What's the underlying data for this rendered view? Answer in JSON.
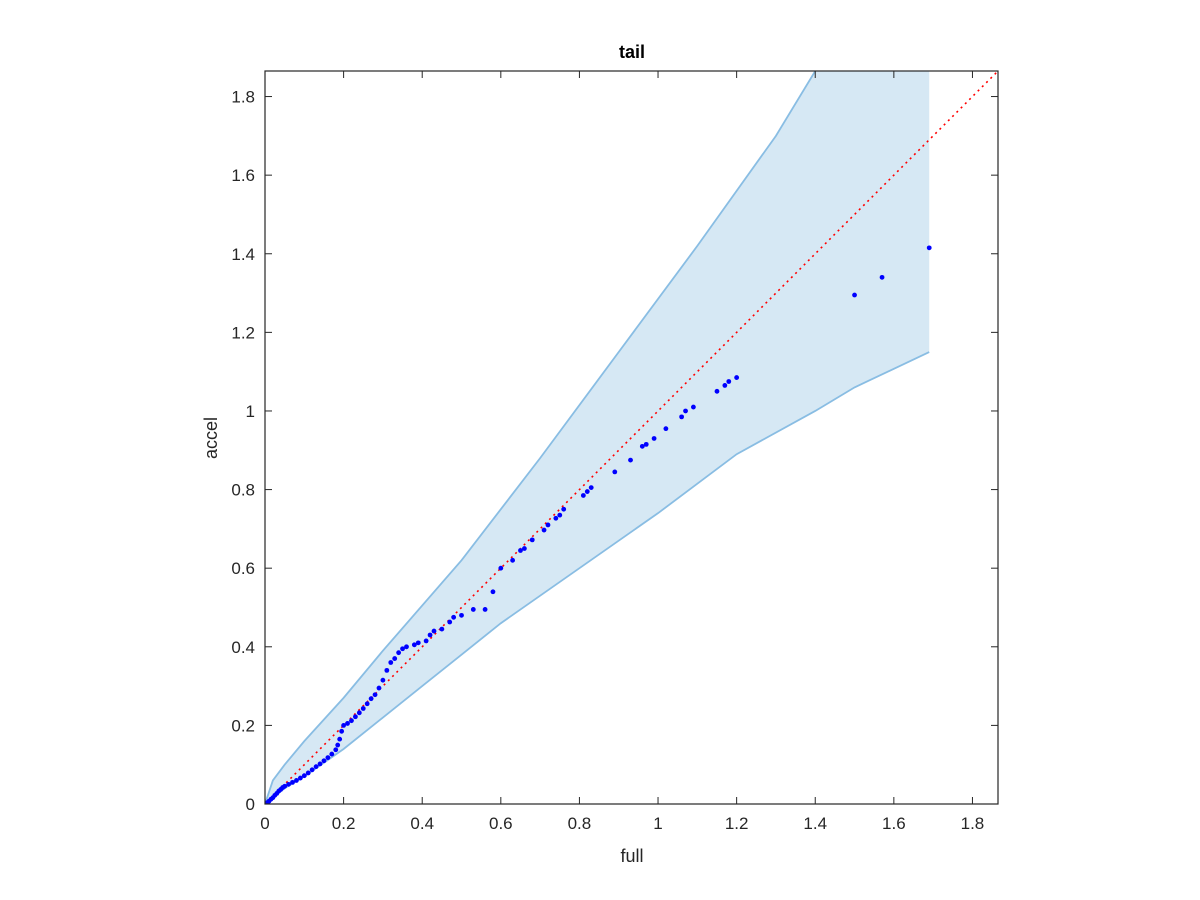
{
  "chart_data": {
    "type": "scatter",
    "title": "tail",
    "xlabel": "full",
    "ylabel": "accel",
    "xlim": [
      0,
      1.865
    ],
    "ylim": [
      0,
      1.865
    ],
    "xticks": [
      "0",
      "0.2",
      "0.4",
      "0.6",
      "0.8",
      "1",
      "1.2",
      "1.4",
      "1.6",
      "1.8"
    ],
    "yticks": [
      "0",
      "0.2",
      "0.4",
      "0.6",
      "0.8",
      "1",
      "1.2",
      "1.4",
      "1.6",
      "1.8"
    ],
    "tick_values": [
      0,
      0.2,
      0.4,
      0.6,
      0.8,
      1,
      1.2,
      1.4,
      1.6,
      1.8
    ],
    "grid": false,
    "colors": {
      "points": "#0000ff",
      "band_fill": "#d6e8f4",
      "band_edge": "#89bde3",
      "reference": "#ff0000",
      "axes": "#262626"
    },
    "band": {
      "upper": [
        [
          0,
          0
        ],
        [
          0.02,
          0.06
        ],
        [
          0.05,
          0.1
        ],
        [
          0.1,
          0.16
        ],
        [
          0.2,
          0.27
        ],
        [
          0.3,
          0.39
        ],
        [
          0.5,
          0.62
        ],
        [
          0.7,
          0.88
        ],
        [
          0.9,
          1.15
        ],
        [
          1.1,
          1.42
        ],
        [
          1.3,
          1.7
        ],
        [
          1.4,
          1.865
        ],
        [
          1.69,
          1.865
        ]
      ],
      "lower": [
        [
          0,
          0
        ],
        [
          0.05,
          0.04
        ],
        [
          0.1,
          0.07
        ],
        [
          0.2,
          0.14
        ],
        [
          0.3,
          0.22
        ],
        [
          0.4,
          0.3
        ],
        [
          0.5,
          0.38
        ],
        [
          0.6,
          0.46
        ],
        [
          0.8,
          0.6
        ],
        [
          1,
          0.74
        ],
        [
          1.2,
          0.89
        ],
        [
          1.4,
          1
        ],
        [
          1.5,
          1.06
        ],
        [
          1.69,
          1.15
        ]
      ]
    },
    "reference_line": [
      [
        0,
        0
      ],
      [
        1.865,
        1.865
      ]
    ],
    "series": [
      {
        "points": [
          [
            0,
            0
          ],
          [
            0.005,
            0.003
          ],
          [
            0.01,
            0.007
          ],
          [
            0.015,
            0.012
          ],
          [
            0.02,
            0.016
          ],
          [
            0.025,
            0.022
          ],
          [
            0.03,
            0.027
          ],
          [
            0.035,
            0.033
          ],
          [
            0.04,
            0.037
          ],
          [
            0.045,
            0.042
          ],
          [
            0.05,
            0.045
          ],
          [
            0.06,
            0.05
          ],
          [
            0.07,
            0.055
          ],
          [
            0.08,
            0.06
          ],
          [
            0.09,
            0.066
          ],
          [
            0.1,
            0.072
          ],
          [
            0.11,
            0.079
          ],
          [
            0.12,
            0.087
          ],
          [
            0.13,
            0.095
          ],
          [
            0.14,
            0.102
          ],
          [
            0.15,
            0.11
          ],
          [
            0.16,
            0.118
          ],
          [
            0.17,
            0.127
          ],
          [
            0.18,
            0.138
          ],
          [
            0.185,
            0.15
          ],
          [
            0.19,
            0.165
          ],
          [
            0.195,
            0.185
          ],
          [
            0.2,
            0.2
          ],
          [
            0.21,
            0.205
          ],
          [
            0.22,
            0.212
          ],
          [
            0.23,
            0.222
          ],
          [
            0.24,
            0.232
          ],
          [
            0.25,
            0.243
          ],
          [
            0.26,
            0.255
          ],
          [
            0.27,
            0.268
          ],
          [
            0.28,
            0.278
          ],
          [
            0.29,
            0.295
          ],
          [
            0.3,
            0.315
          ],
          [
            0.31,
            0.34
          ],
          [
            0.32,
            0.36
          ],
          [
            0.33,
            0.37
          ],
          [
            0.34,
            0.385
          ],
          [
            0.35,
            0.395
          ],
          [
            0.36,
            0.4
          ],
          [
            0.38,
            0.405
          ],
          [
            0.39,
            0.41
          ],
          [
            0.41,
            0.415
          ],
          [
            0.42,
            0.43
          ],
          [
            0.43,
            0.44
          ],
          [
            0.45,
            0.445
          ],
          [
            0.47,
            0.463
          ],
          [
            0.48,
            0.475
          ],
          [
            0.5,
            0.48
          ],
          [
            0.53,
            0.495
          ],
          [
            0.56,
            0.495
          ],
          [
            0.58,
            0.54
          ],
          [
            0.6,
            0.6
          ],
          [
            0.63,
            0.62
          ],
          [
            0.65,
            0.645
          ],
          [
            0.66,
            0.65
          ],
          [
            0.68,
            0.672
          ],
          [
            0.71,
            0.697
          ],
          [
            0.72,
            0.71
          ],
          [
            0.74,
            0.727
          ],
          [
            0.75,
            0.735
          ],
          [
            0.76,
            0.75
          ],
          [
            0.81,
            0.785
          ],
          [
            0.82,
            0.795
          ],
          [
            0.83,
            0.805
          ],
          [
            0.89,
            0.845
          ],
          [
            0.93,
            0.875
          ],
          [
            0.96,
            0.91
          ],
          [
            0.97,
            0.915
          ],
          [
            0.99,
            0.93
          ],
          [
            1.02,
            0.955
          ],
          [
            1.06,
            0.985
          ],
          [
            1.07,
            1
          ],
          [
            1.09,
            1.01
          ],
          [
            1.15,
            1.05
          ],
          [
            1.17,
            1.065
          ],
          [
            1.18,
            1.075
          ],
          [
            1.2,
            1.085
          ],
          [
            1.5,
            1.295
          ],
          [
            1.57,
            1.34
          ],
          [
            1.69,
            1.415
          ]
        ]
      }
    ]
  }
}
